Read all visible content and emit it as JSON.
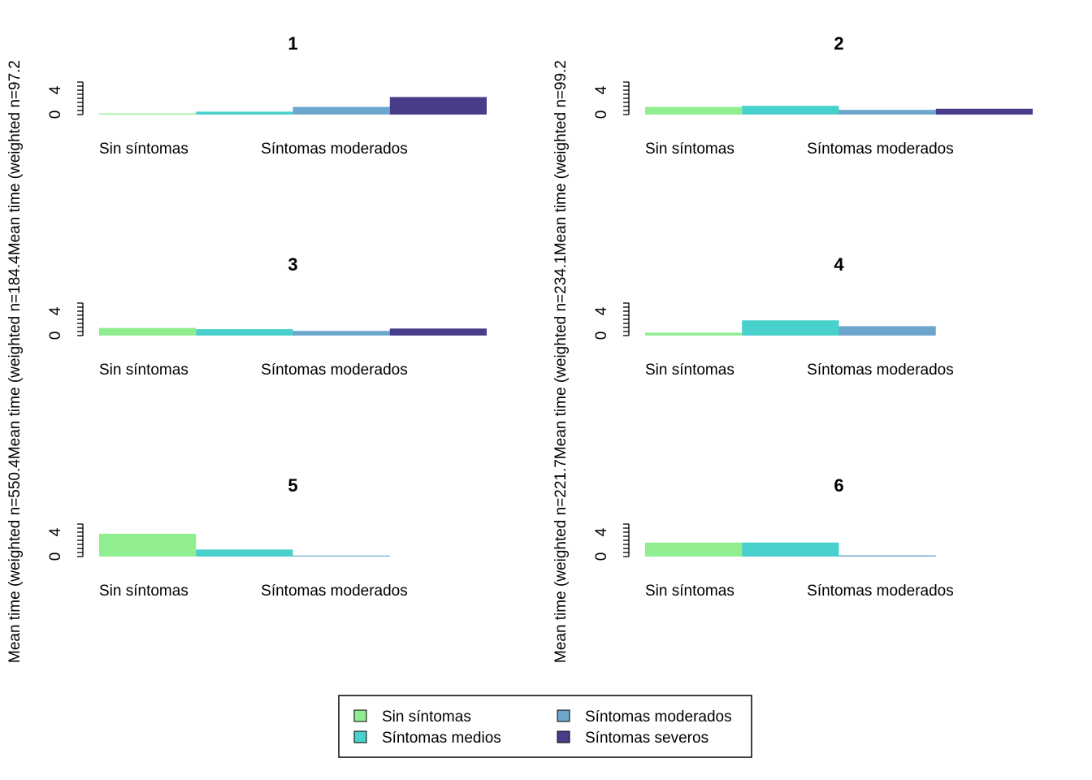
{
  "chart_data": {
    "type": "bar",
    "layout": "2 columns x 3 rows of small multiples, shared legend at bottom",
    "categories": [
      "Sin síntomas",
      "Síntomas medios",
      "Síntomas moderados",
      "Síntomas severos"
    ],
    "printed_category_labels": [
      "Sin síntomas",
      "Síntomas moderados"
    ],
    "colors": [
      "#90ee90",
      "#48d1cc",
      "#6ca6cd",
      "#483d8b"
    ],
    "ylim": [
      0,
      8
    ],
    "yticks": [
      0,
      4
    ],
    "grid": false,
    "ylabels": [
      "Mean time (weighted n=550.4Mean time (weighted n=184.4Mean time (weighted n=97.2",
      "Mean time (weighted n=221.7Mean time (weighted n=234.1Mean time (weighted n=99.2"
    ],
    "panels": [
      {
        "title": "1",
        "values": [
          0.2,
          0.5,
          1.3,
          3.0
        ]
      },
      {
        "title": "2",
        "values": [
          1.3,
          1.5,
          0.8,
          1.0
        ]
      },
      {
        "title": "3",
        "values": [
          1.3,
          1.1,
          0.8,
          1.2
        ]
      },
      {
        "title": "4",
        "values": [
          0.5,
          2.6,
          1.6,
          0
        ]
      },
      {
        "title": "5",
        "values": [
          3.9,
          1.2,
          0.1,
          0
        ]
      },
      {
        "title": "6",
        "values": [
          2.4,
          2.4,
          0.2,
          0
        ]
      }
    ],
    "legend": {
      "position": "bottom-center",
      "entries": [
        "Sin síntomas",
        "Síntomas medios",
        "Síntomas moderados",
        "Síntomas severos"
      ]
    }
  }
}
